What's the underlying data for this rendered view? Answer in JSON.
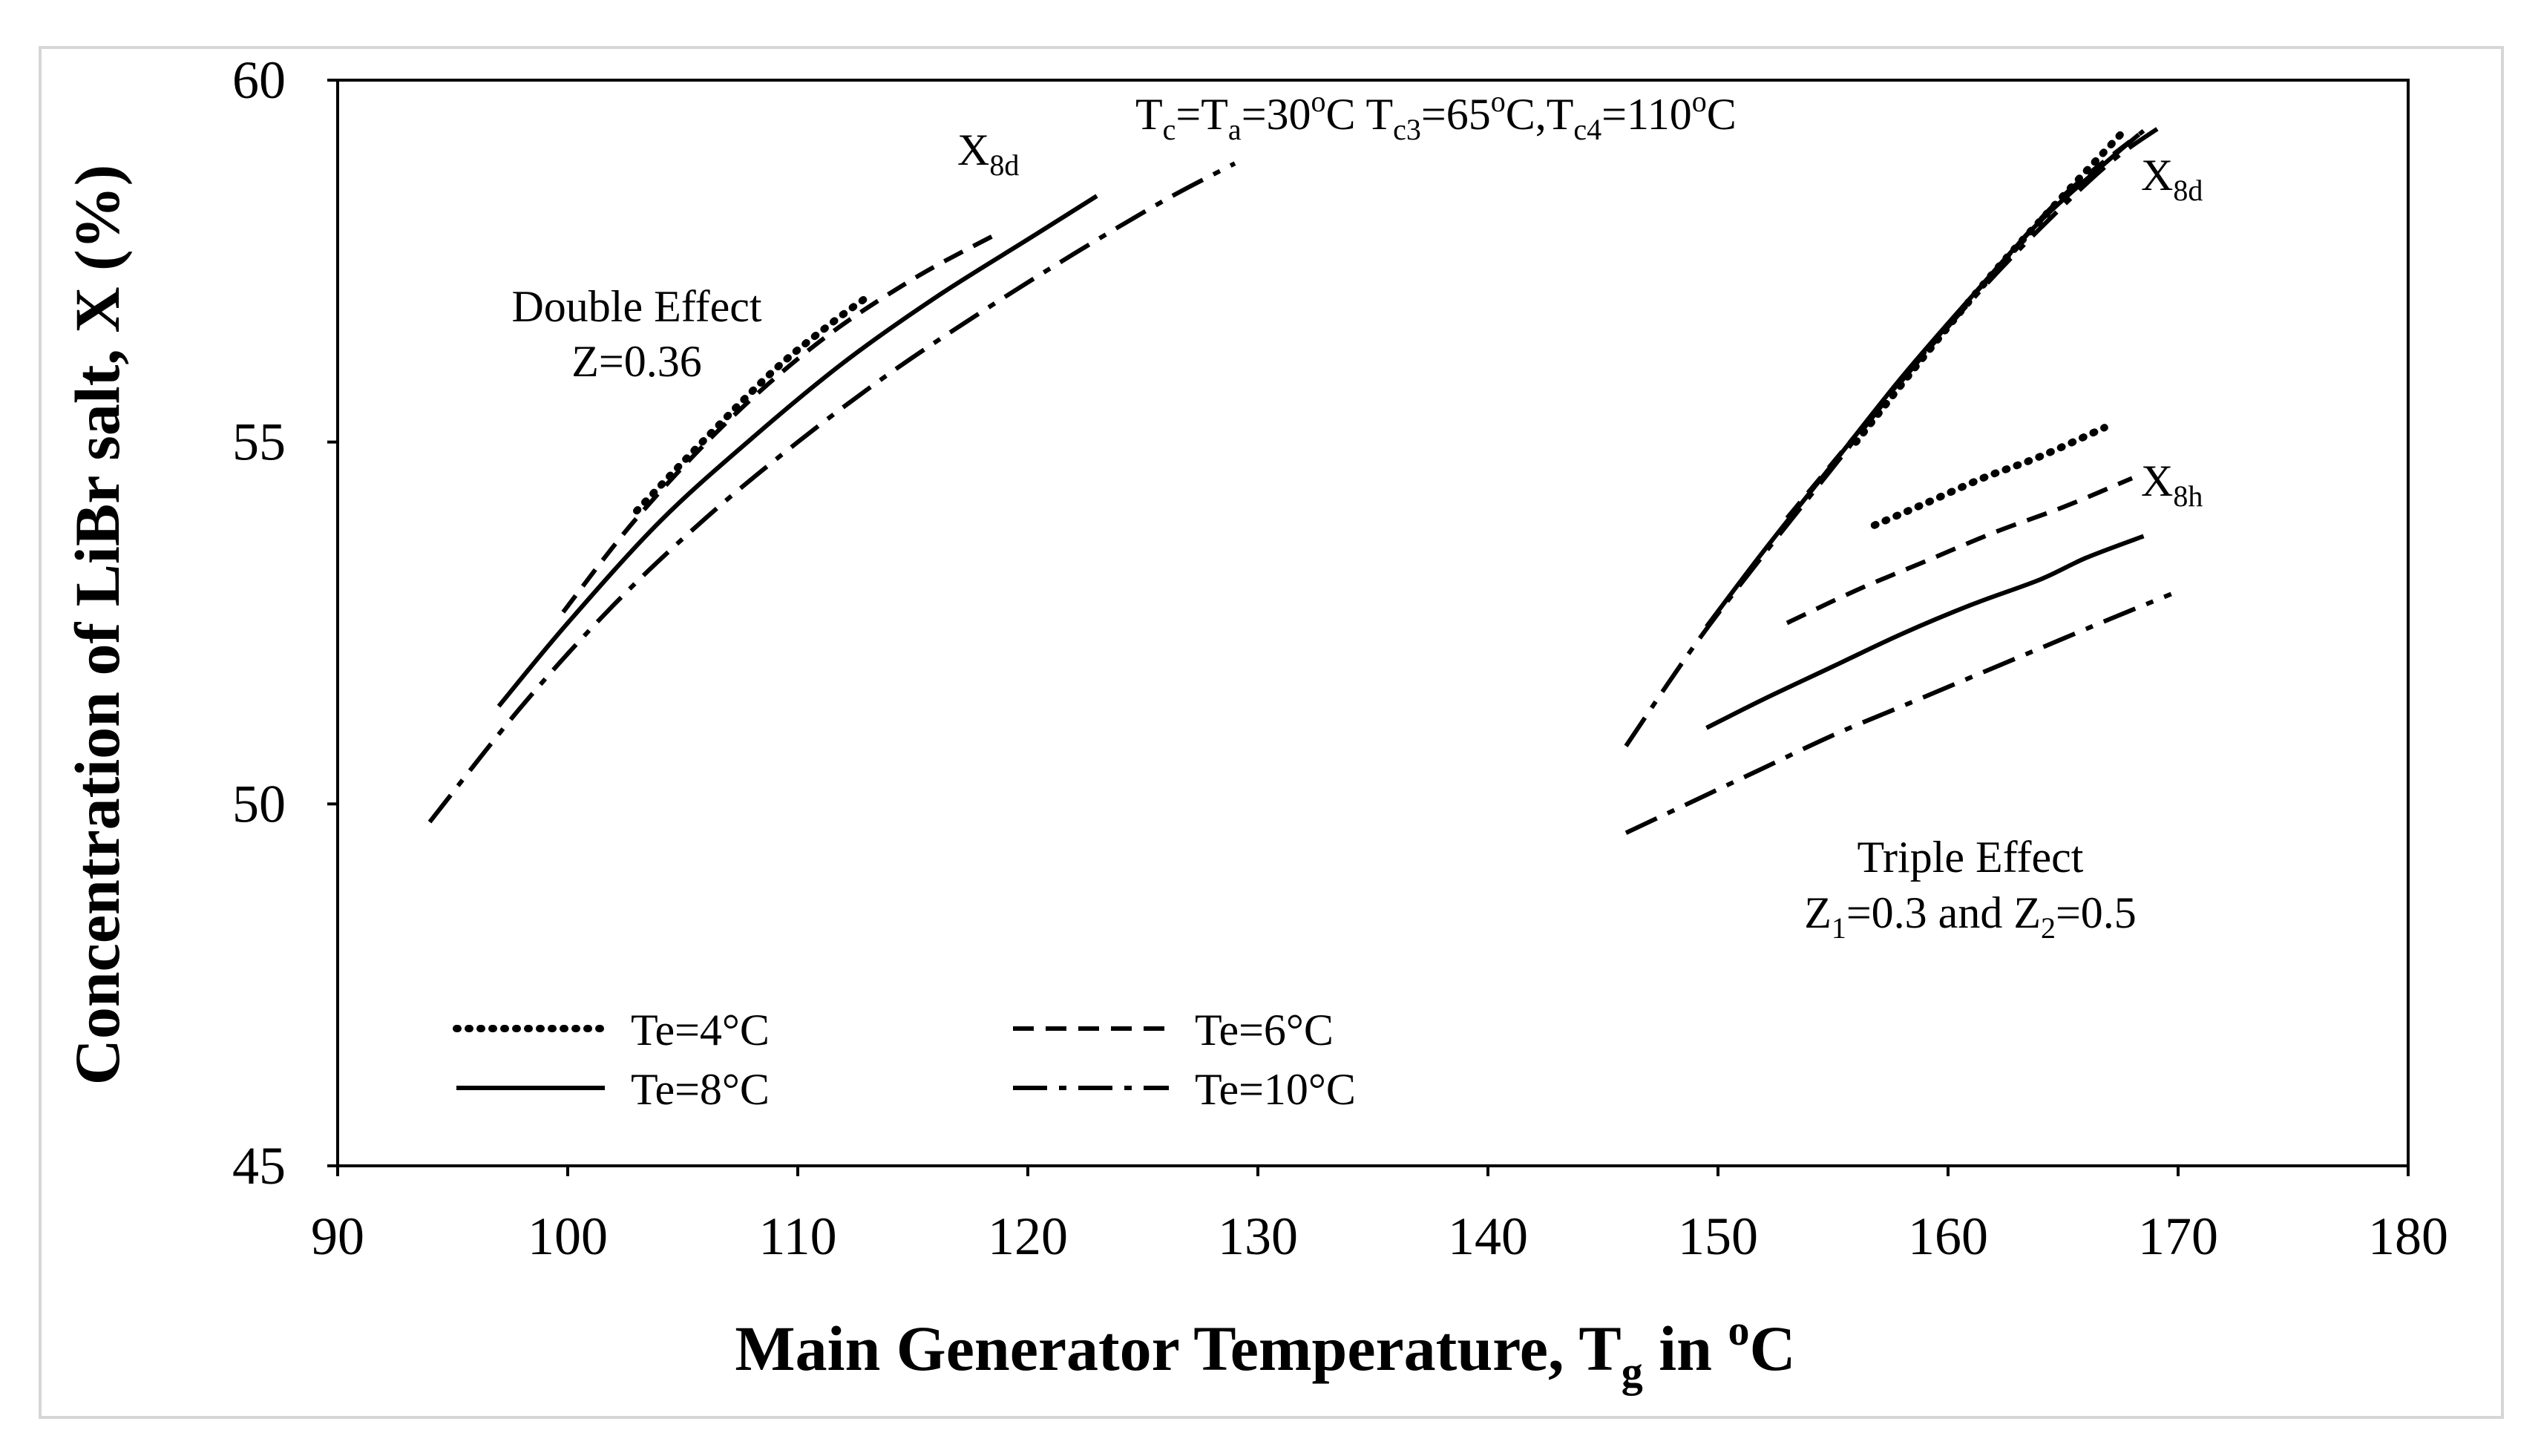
{
  "chart_data": {
    "type": "line",
    "title": "",
    "xlabel": {
      "main": "Main Generator Temperature, T",
      "sub": "g",
      "mid": " in ",
      "sup": "o",
      "end": "C"
    },
    "ylabel": "Concentration of LiBr salt, X (%)",
    "xlim": [
      90,
      180
    ],
    "ylim": [
      45,
      60
    ],
    "xticks": [
      90,
      100,
      110,
      120,
      130,
      140,
      150,
      160,
      170,
      180
    ],
    "yticks": [
      45,
      50,
      55,
      60
    ],
    "grid": false,
    "legend_position": "bottom-left",
    "legend": [
      {
        "label": "Te=4°C",
        "style": "dotted"
      },
      {
        "label": "Te=6°C",
        "style": "dashed"
      },
      {
        "label": "Te=8°C",
        "style": "solid"
      },
      {
        "label": "Te=10°C",
        "style": "dashdot"
      }
    ],
    "annotations": {
      "conditions": {
        "t1": "T",
        "s1": "c",
        "t2": "=T",
        "s2": "a",
        "t3": "=30",
        "p3": "o",
        "t4": "C T",
        "s4": "c3",
        "t5": "=65",
        "p5": "o",
        "t6": "C,T",
        "s6": "c4",
        "t7": "=110",
        "p7": "o",
        "t8": "C"
      },
      "x8d_double": {
        "main": "X",
        "sub": "8d"
      },
      "x8d_triple": {
        "main": "X",
        "sub": "8d"
      },
      "x8h_triple": {
        "main": "X",
        "sub": "8h"
      },
      "double_effect_title": "Double Effect",
      "double_effect_z": "Z=0.36",
      "triple_effect_title": "Triple Effect",
      "triple_effect_z": {
        "a": "Z",
        "a_sub": "1",
        "b": "=0.3 and Z",
        "b_sub": "2",
        "c": "=0.5"
      }
    },
    "series": [
      {
        "name": "Double Te=4°C",
        "style": "dotted",
        "points": [
          [
            103,
            54.05
          ],
          [
            106,
            55.05
          ],
          [
            109,
            56.0
          ],
          [
            111.5,
            56.65
          ],
          [
            113,
            57.0
          ]
        ]
      },
      {
        "name": "Double Te=6°C",
        "style": "dashed",
        "points": [
          [
            99.8,
            52.65
          ],
          [
            103,
            53.95
          ],
          [
            107,
            55.3
          ],
          [
            111,
            56.4
          ],
          [
            115,
            57.25
          ],
          [
            118.5,
            57.85
          ]
        ]
      },
      {
        "name": "Double Te=8°C",
        "style": "solid",
        "points": [
          [
            97,
            51.35
          ],
          [
            100,
            52.5
          ],
          [
            104,
            53.9
          ],
          [
            108,
            55.05
          ],
          [
            112,
            56.1
          ],
          [
            116,
            57.0
          ],
          [
            120,
            57.8
          ],
          [
            123,
            58.4
          ]
        ]
      },
      {
        "name": "Double Te=10°C",
        "style": "dashdot",
        "points": [
          [
            94,
            49.75
          ],
          [
            98,
            51.35
          ],
          [
            102,
            52.75
          ],
          [
            106,
            53.95
          ],
          [
            110,
            55.0
          ],
          [
            114,
            55.95
          ],
          [
            118,
            56.8
          ],
          [
            122,
            57.6
          ],
          [
            126,
            58.35
          ],
          [
            129,
            58.85
          ]
        ]
      },
      {
        "name": "Triple X8d Te=4°C",
        "style": "dotted",
        "points": [
          [
            156,
            55.0
          ],
          [
            159,
            56.2
          ],
          [
            162,
            57.35
          ],
          [
            165,
            58.4
          ],
          [
            167.5,
            59.25
          ]
        ]
      },
      {
        "name": "Triple X8d Te=6°C",
        "style": "dashed",
        "points": [
          [
            153,
            53.95
          ],
          [
            156,
            55.1
          ],
          [
            159,
            56.25
          ],
          [
            162,
            57.35
          ],
          [
            165,
            58.4
          ],
          [
            168.5,
            59.3
          ]
        ]
      },
      {
        "name": "Triple X8d Te=8°C",
        "style": "solid",
        "points": [
          [
            149.5,
            52.45
          ],
          [
            152,
            53.5
          ],
          [
            155,
            54.7
          ],
          [
            158,
            55.9
          ],
          [
            161,
            57.0
          ],
          [
            164,
            58.05
          ],
          [
            167,
            58.9
          ],
          [
            168.3,
            59.25
          ]
        ]
      },
      {
        "name": "Triple X8d Te=10°C",
        "style": "dashdot",
        "points": [
          [
            146,
            50.8
          ],
          [
            149,
            52.2
          ],
          [
            152,
            53.45
          ],
          [
            155,
            54.65
          ],
          [
            158,
            55.85
          ],
          [
            161,
            56.95
          ],
          [
            164,
            57.95
          ],
          [
            167,
            58.85
          ],
          [
            169.2,
            59.35
          ]
        ]
      },
      {
        "name": "Triple X8h Te=4°C",
        "style": "dotted",
        "points": [
          [
            156.8,
            53.85
          ],
          [
            159,
            54.15
          ],
          [
            161.5,
            54.5
          ],
          [
            164,
            54.8
          ],
          [
            166.8,
            55.2
          ]
        ]
      },
      {
        "name": "Triple X8h Te=6°C",
        "style": "dashed",
        "points": [
          [
            153,
            52.5
          ],
          [
            156,
            52.95
          ],
          [
            159,
            53.35
          ],
          [
            162,
            53.75
          ],
          [
            165,
            54.1
          ],
          [
            168,
            54.5
          ]
        ]
      },
      {
        "name": "Triple X8h Te=8°C",
        "style": "solid",
        "points": [
          [
            149.5,
            51.05
          ],
          [
            152,
            51.45
          ],
          [
            155,
            51.9
          ],
          [
            158,
            52.35
          ],
          [
            161,
            52.75
          ],
          [
            164,
            53.1
          ],
          [
            166,
            53.4
          ],
          [
            168.5,
            53.7
          ]
        ]
      },
      {
        "name": "Triple X8h Te=10°C",
        "style": "dashdot",
        "points": [
          [
            146,
            49.6
          ],
          [
            149,
            50.05
          ],
          [
            152,
            50.5
          ],
          [
            155,
            50.95
          ],
          [
            158,
            51.35
          ],
          [
            161,
            51.75
          ],
          [
            164,
            52.15
          ],
          [
            167,
            52.55
          ],
          [
            169.7,
            52.9
          ]
        ]
      }
    ]
  }
}
